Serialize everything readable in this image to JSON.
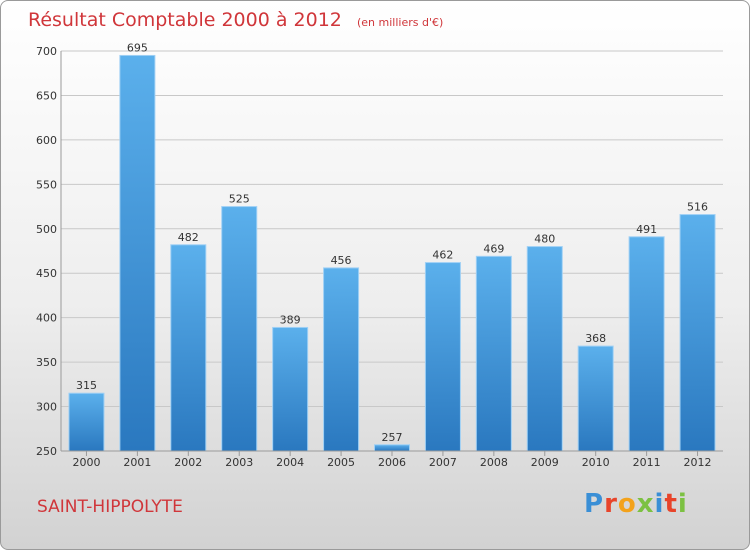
{
  "header": {
    "title": "Résultat Comptable 2000 à 2012",
    "unit": "(en milliers d'€)"
  },
  "footer": {
    "commune": "SAINT-HIPPOLYTE",
    "logo_letters": [
      "P",
      "r",
      "o",
      "x",
      "i",
      "t",
      "i"
    ]
  },
  "colors": {
    "title": "#d0363a",
    "bar_top": "#5bb0ec",
    "bar_bottom": "#2a78bf",
    "grid": "#c8c8c8",
    "logo": [
      "#3a8fd6",
      "#e8442a",
      "#f3a21b",
      "#7cc142",
      "#3a8fd6",
      "#e8442a",
      "#7cc142"
    ]
  },
  "chart_data": {
    "type": "bar",
    "title": "Résultat Comptable 2000 à 2012",
    "xlabel": "",
    "ylabel": "(en milliers d'€)",
    "categories": [
      "2000",
      "2001",
      "2002",
      "2003",
      "2004",
      "2005",
      "2006",
      "2007",
      "2008",
      "2009",
      "2010",
      "2011",
      "2012"
    ],
    "values": [
      315,
      695,
      482,
      525,
      389,
      456,
      257,
      462,
      469,
      480,
      368,
      491,
      516
    ],
    "ylim": [
      250,
      700
    ],
    "yticks": [
      250,
      300,
      350,
      400,
      450,
      500,
      550,
      600,
      650,
      700
    ],
    "grid": true
  }
}
